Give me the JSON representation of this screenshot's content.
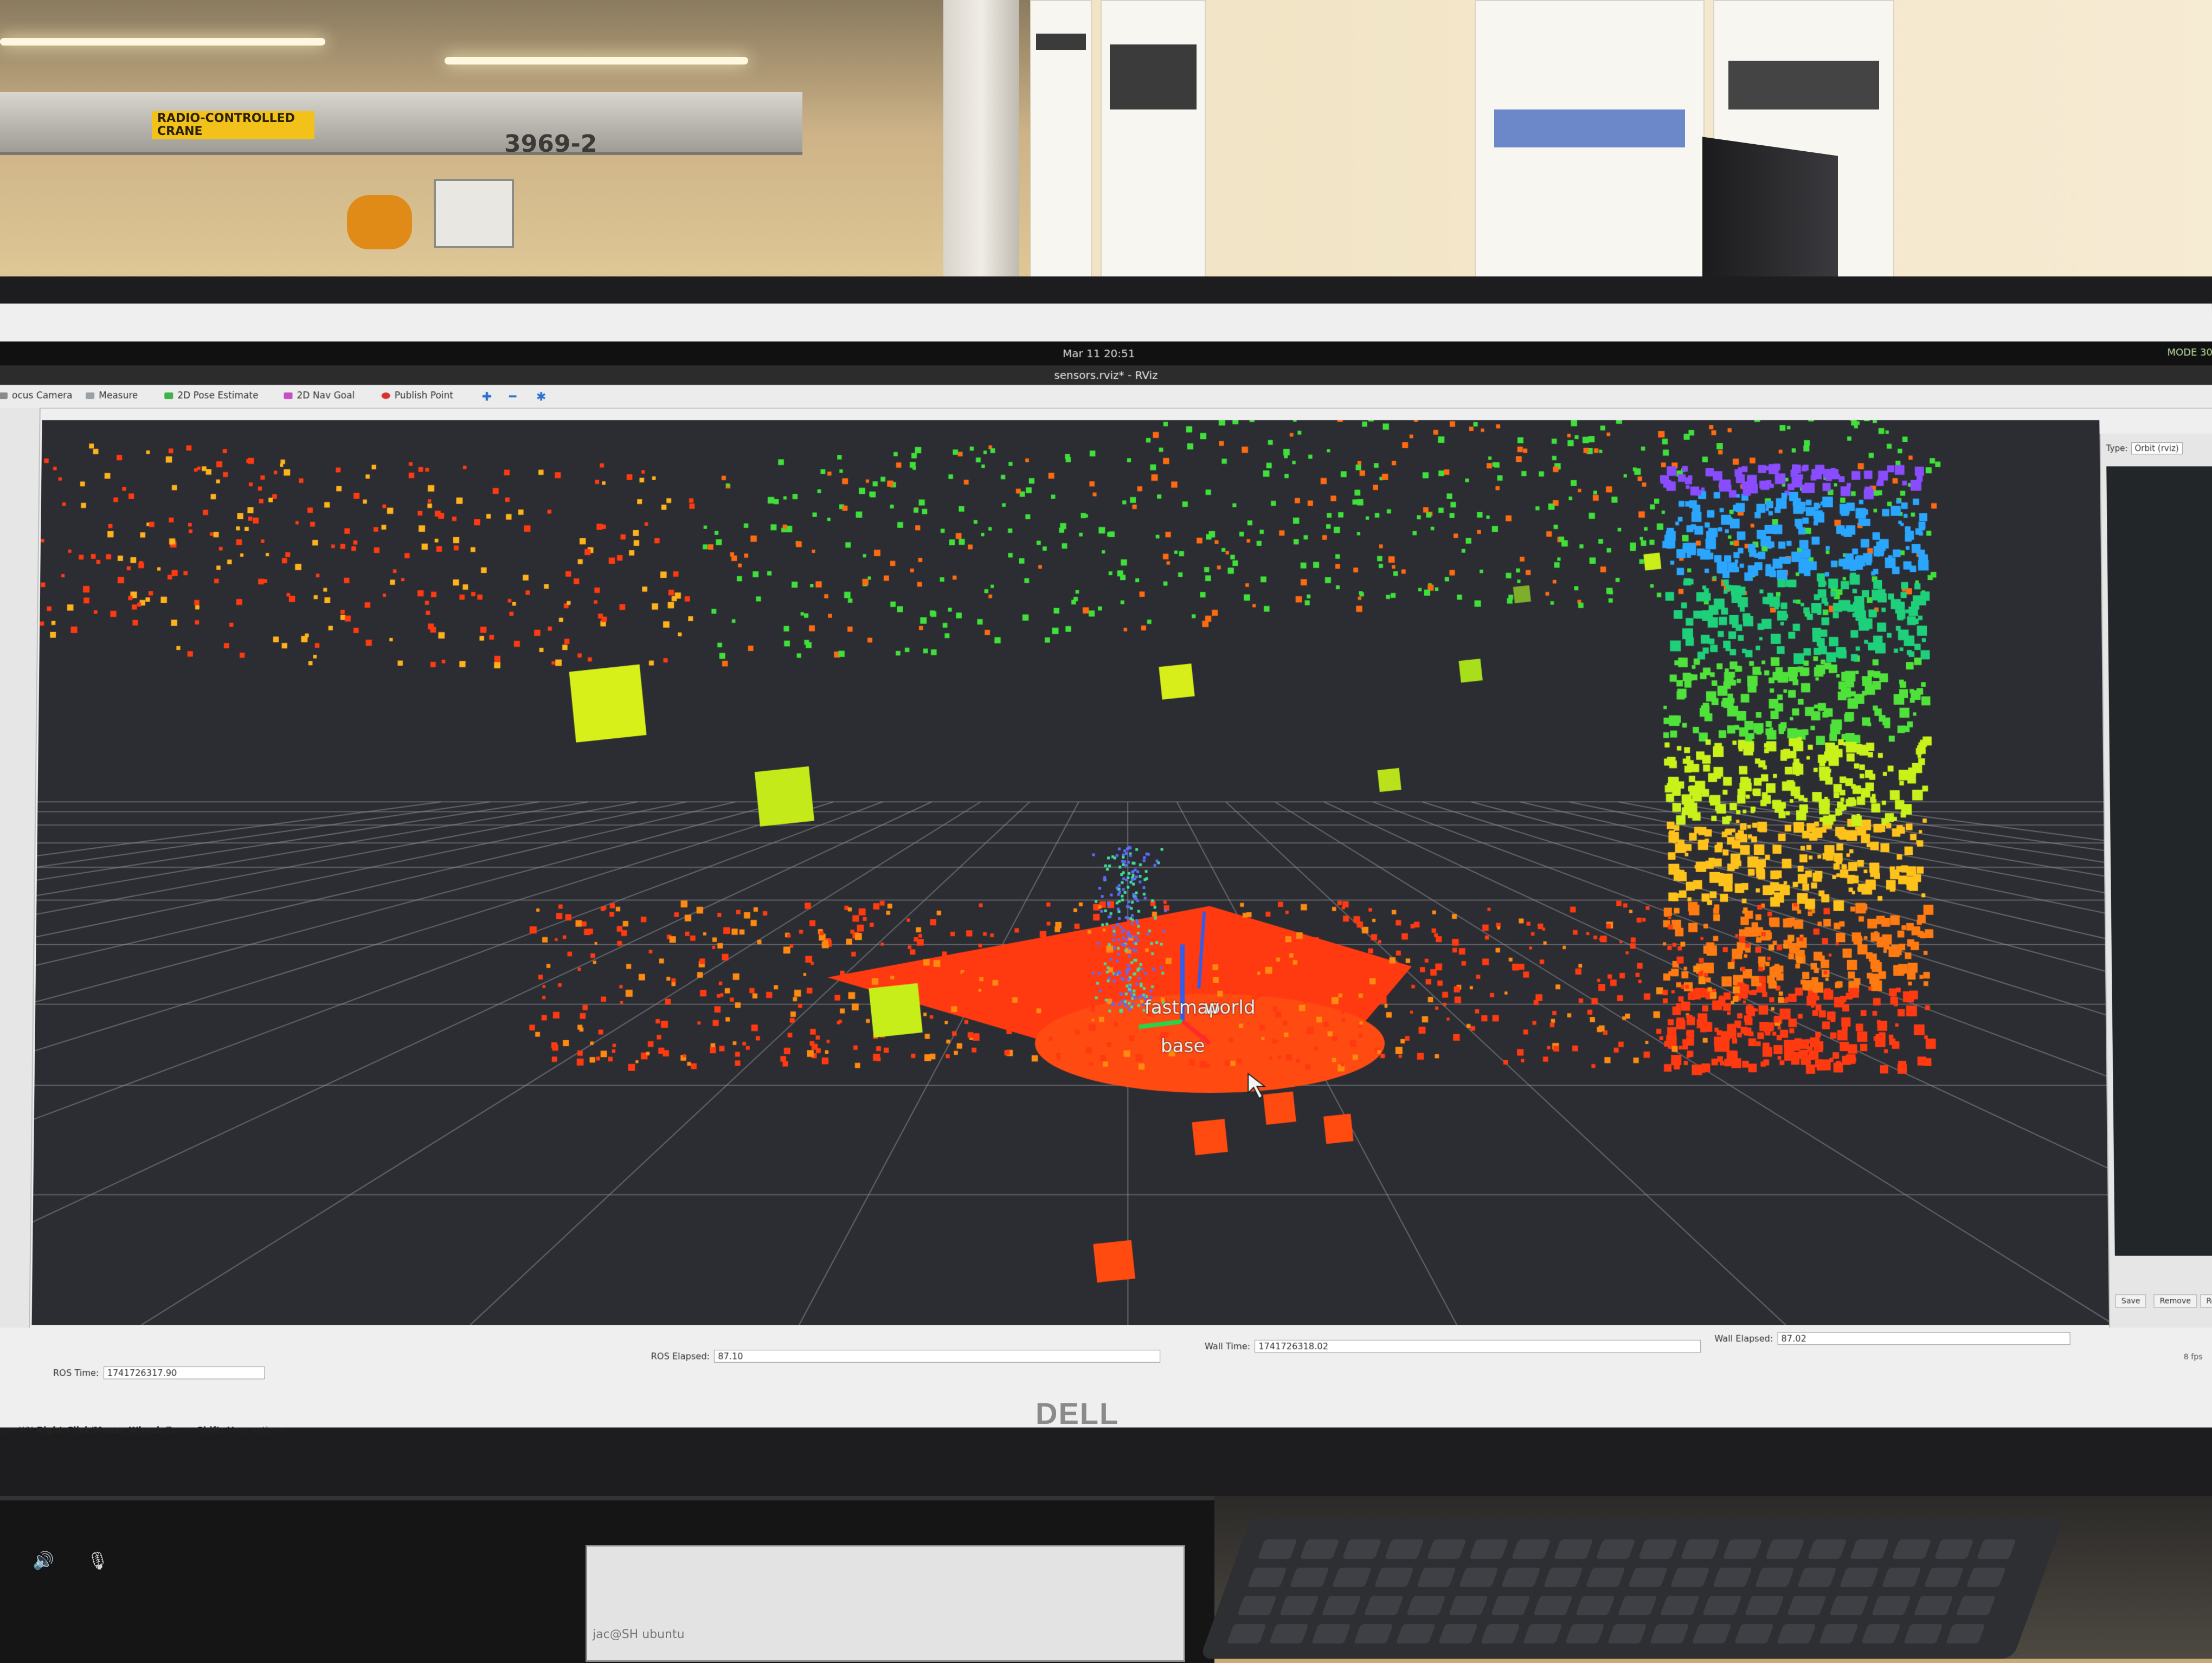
{
  "room": {
    "crane_sign": "RADIO-CONTROLLED CRANE",
    "crane_number": "3969-2"
  },
  "topbar": {
    "clock": "Mar 11  20:51",
    "right_label": "MODE 30"
  },
  "window": {
    "title": "sensors.rviz* - RViz"
  },
  "toolbar": {
    "tools": [
      {
        "label": "ocus Camera",
        "icon": "camera-icon"
      },
      {
        "label": "Measure",
        "icon": "ruler-icon"
      },
      {
        "label": "2D Pose Estimate",
        "icon": "pose-arrow-icon"
      },
      {
        "label": "2D Nav Goal",
        "icon": "goal-arrow-icon"
      },
      {
        "label": "Publish Point",
        "icon": "pin-icon"
      }
    ]
  },
  "views_panel": {
    "type_label": "Type:",
    "type_value": "Orbit (rviz)",
    "buttons": [
      "Save",
      "Remove",
      "Renam"
    ]
  },
  "viewport": {
    "frames": [
      "fastmap",
      "world",
      "base"
    ],
    "colors": {
      "background": "#2b2d33",
      "grid": "#8a8d93",
      "floor": "#ff3a10"
    }
  },
  "time": {
    "ros_time_label": "ROS Time:",
    "ros_time_value": "1741726317.90",
    "ros_elapsed_label": "ROS Elapsed:",
    "ros_elapsed_value": "87.10",
    "wall_time_label": "Wall Time:",
    "wall_time_value": "1741726318.02",
    "wall_elapsed_label": "Wall Elapsed:",
    "wall_elapsed_value": "87.02",
    "fps": "8 fps"
  },
  "status_hint": {
    "move": "Move X/Y.",
    "right_click": "Right-Click/Mouse Wheel:",
    "zoom": "Zoom.",
    "shift": "Shift:",
    "more": "More options."
  },
  "monitor": {
    "brand": "DELL"
  },
  "laptop": {
    "terminal_text": "jac@SH ubuntu"
  }
}
